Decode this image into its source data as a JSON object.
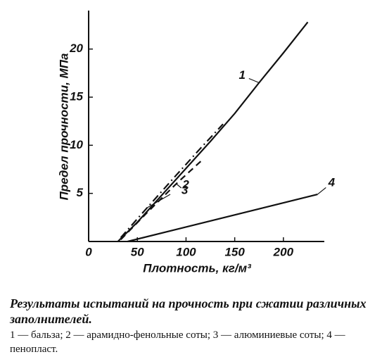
{
  "chart_data": {
    "type": "line",
    "x_label": "Плотность, кг/м³",
    "y_label": "Предел прочности, МПа",
    "caption": "Результаты испытаний на прочность при сжатии различных заполнителей.",
    "note": "1 — бальза; 2 — арамидно-фенольные соты; 3 — алюминиевые соты; 4 — пенопласт.",
    "xlim": [
      0,
      242
    ],
    "ylim": [
      0,
      24
    ],
    "xticks": [
      0,
      50,
      100,
      150,
      200
    ],
    "yticks": [
      5,
      10,
      15,
      20
    ],
    "grid": false,
    "series": [
      {
        "name": "1",
        "color": "#111111",
        "dash": "solid",
        "x": [
          30,
          50,
          75,
          100,
          125,
          150,
          175,
          200,
          225
        ],
        "values": [
          0,
          2,
          4.8,
          7.6,
          10.4,
          13.3,
          16.5,
          19.6,
          22.8
        ]
      },
      {
        "name": "2",
        "color": "#111111",
        "dash": "dashdot",
        "x": [
          33,
          60,
          90,
          115,
          138
        ],
        "values": [
          0.4,
          3.5,
          6.9,
          9.7,
          12.2
        ]
      },
      {
        "name": "3",
        "color": "#111111",
        "dash": "dashed",
        "x": [
          33,
          60,
          90,
          118
        ],
        "values": [
          0.2,
          3.0,
          6.0,
          8.6
        ]
      },
      {
        "name": "4",
        "color": "#111111",
        "dash": "solid",
        "x": [
          40,
          235
        ],
        "values": [
          0,
          4.9
        ]
      }
    ]
  }
}
